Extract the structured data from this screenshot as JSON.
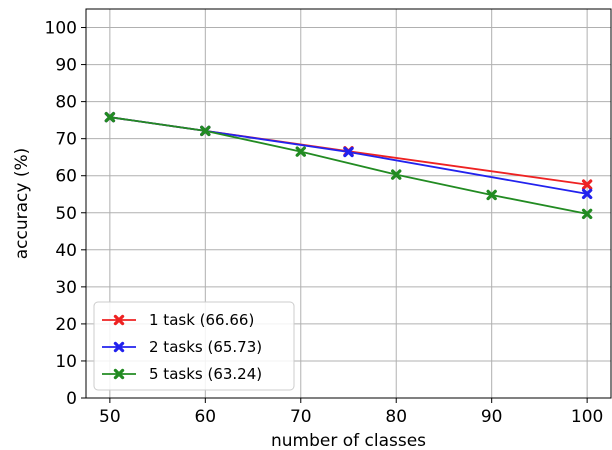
{
  "chart_data": {
    "type": "line",
    "title": "",
    "xlabel": "number of classes",
    "ylabel": "accuracy (%)",
    "xlim": [
      47.5,
      102.5
    ],
    "ylim": [
      0,
      105
    ],
    "xticks": [
      "50",
      "60",
      "70",
      "80",
      "90",
      "100"
    ],
    "yticks": [
      "0",
      "10",
      "20",
      "30",
      "40",
      "50",
      "60",
      "70",
      "80",
      "90",
      "100"
    ],
    "grid": true,
    "legend_position": "lower-left",
    "series": [
      {
        "name": "1 task (66.66)",
        "color": "#ee2222",
        "x": [
          50,
          60,
          75,
          100
        ],
        "y": [
          75.8,
          72.1,
          66.6,
          57.6
        ]
      },
      {
        "name": "2 tasks (65.73)",
        "color": "#2222ee",
        "x": [
          50,
          60,
          75,
          100
        ],
        "y": [
          75.8,
          72.1,
          66.4,
          55.1
        ]
      },
      {
        "name": "5 tasks (63.24)",
        "color": "#228b22",
        "x": [
          50,
          60,
          70,
          80,
          90,
          100
        ],
        "y": [
          75.8,
          72.1,
          66.5,
          60.3,
          54.8,
          49.7
        ]
      }
    ]
  }
}
